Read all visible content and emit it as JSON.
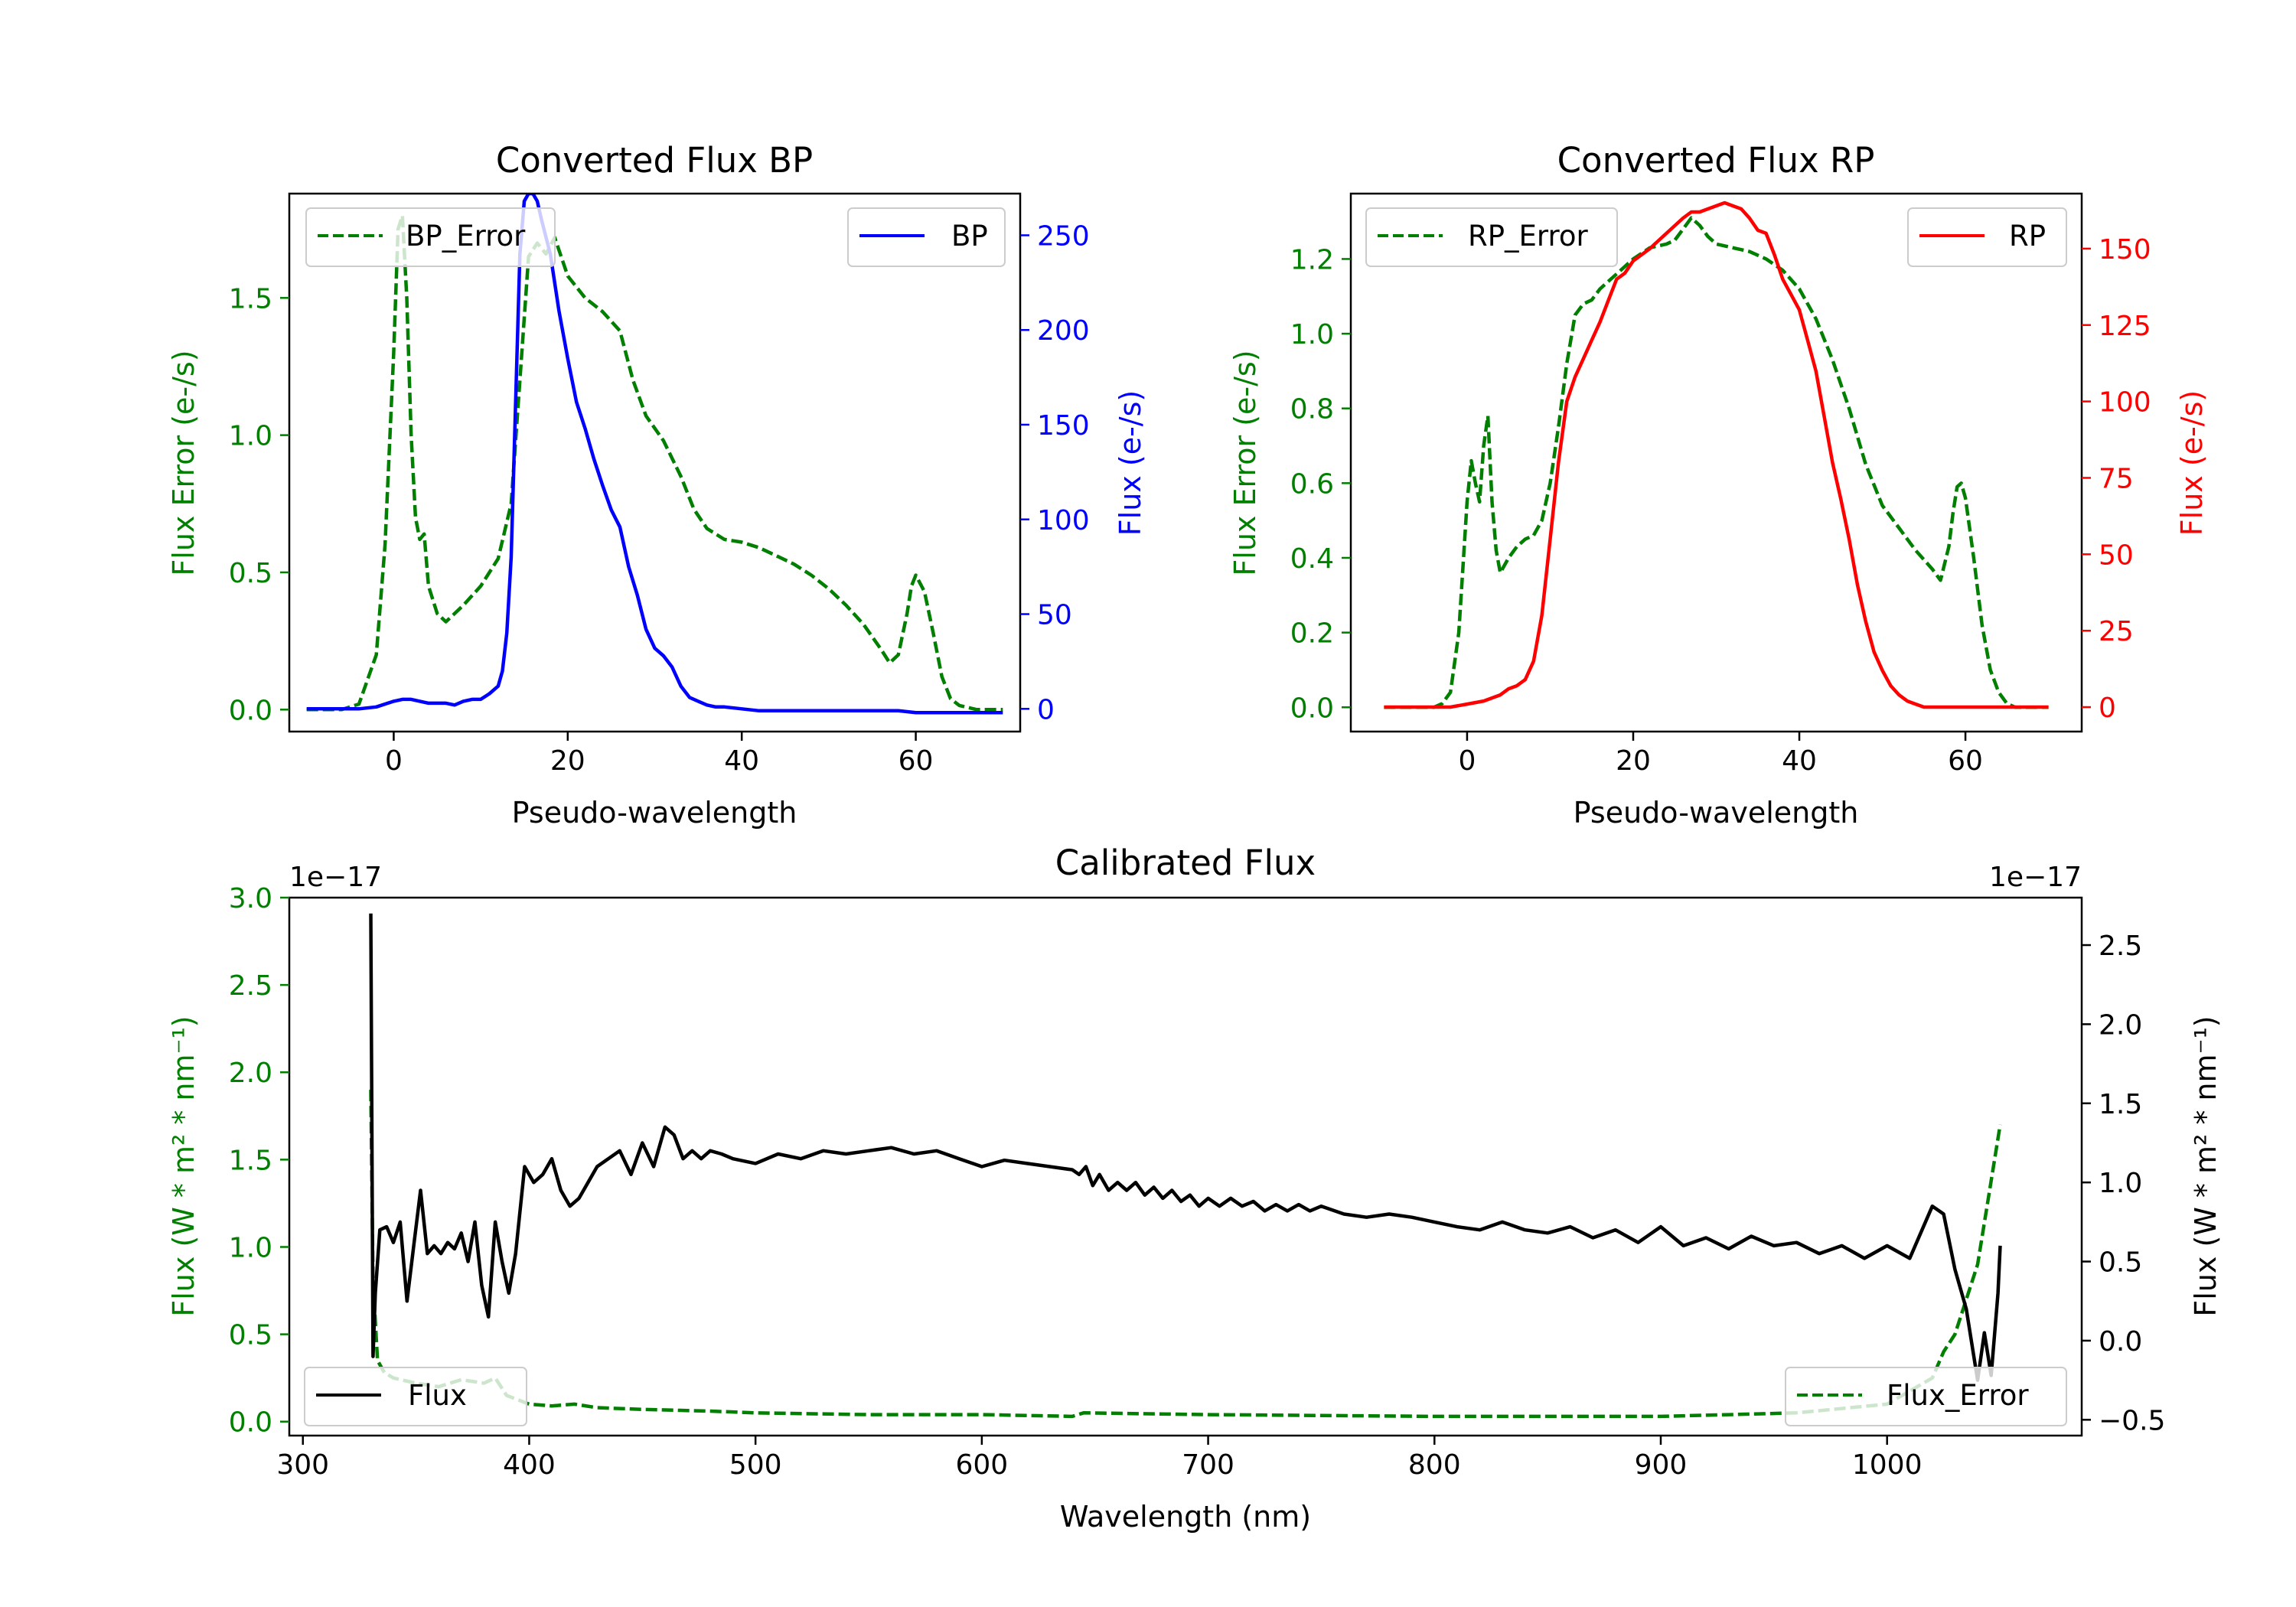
{
  "colors": {
    "bp_flux": "#0000ff",
    "rp_flux": "#ff0000",
    "error": "#007f00",
    "calib_flux": "#000000",
    "axis": "#000000"
  },
  "chart_data": [
    {
      "id": "bp",
      "type": "line",
      "title": "Converted Flux BP",
      "xlabel": "Pseudo-wavelength",
      "ylabel_left": "Flux Error (e-/s)",
      "ylabel_right": "Flux (e-/s)",
      "xlim": [
        -12,
        72
      ],
      "ylim_left": [
        -0.08,
        1.88
      ],
      "ylim_right": [
        -12,
        272
      ],
      "xticks": [
        0,
        20,
        40,
        60
      ],
      "yticks_left": [
        0.0,
        0.5,
        1.0,
        1.5
      ],
      "yticks_left_labels": [
        "0.0",
        "0.5",
        "1.0",
        "1.5"
      ],
      "yticks_right": [
        0,
        50,
        100,
        150,
        200,
        250
      ],
      "yticks_right_labels": [
        "0",
        "50",
        "100",
        "150",
        "200",
        "250"
      ],
      "legend_left": "top-left",
      "legend_right": "top-right",
      "series": [
        {
          "name": "BP_Error",
          "axis": "left",
          "style": "dashed",
          "color_key": "error",
          "x": [
            -10,
            -6,
            -4,
            -2,
            -1,
            0,
            0.5,
            1,
            1.5,
            2,
            2.5,
            3,
            3.5,
            4,
            5,
            6,
            8,
            10,
            12,
            13.5,
            14.5,
            15.5,
            16.5,
            17.5,
            18.5,
            20,
            22,
            24,
            26,
            27.5,
            29,
            31,
            33,
            34.5,
            36,
            38,
            40,
            42,
            44,
            46,
            48,
            50,
            52,
            54,
            56,
            57,
            58,
            59,
            59.5,
            60,
            61,
            62,
            63,
            64,
            65,
            67,
            70
          ],
          "y": [
            0,
            0,
            0.02,
            0.2,
            0.6,
            1.3,
            1.75,
            1.8,
            1.5,
            1.0,
            0.7,
            0.62,
            0.64,
            0.45,
            0.35,
            0.32,
            0.38,
            0.45,
            0.55,
            0.75,
            1.2,
            1.65,
            1.7,
            1.66,
            1.72,
            1.58,
            1.5,
            1.45,
            1.38,
            1.2,
            1.07,
            0.98,
            0.85,
            0.73,
            0.66,
            0.62,
            0.61,
            0.59,
            0.56,
            0.53,
            0.49,
            0.44,
            0.38,
            0.31,
            0.22,
            0.17,
            0.2,
            0.35,
            0.45,
            0.49,
            0.43,
            0.28,
            0.12,
            0.04,
            0.015,
            0,
            0
          ]
        },
        {
          "name": "BP",
          "axis": "right",
          "style": "solid",
          "color_key": "bp_flux",
          "x": [
            -10,
            -4,
            -2,
            0,
            1,
            2,
            3,
            4,
            5,
            6,
            7,
            8,
            9,
            10,
            11,
            12,
            12.5,
            13,
            13.5,
            14,
            14.5,
            15,
            15.5,
            16,
            16.5,
            17,
            18,
            19,
            20,
            21,
            22,
            23,
            24,
            25,
            26,
            27,
            28,
            29,
            30,
            31,
            32,
            33,
            34,
            35,
            36,
            37,
            38,
            40,
            42,
            44,
            46,
            48,
            50,
            52,
            54,
            56,
            58,
            60,
            62,
            64,
            66,
            68,
            70
          ],
          "y": [
            0,
            0,
            1,
            4,
            5,
            5,
            4,
            3,
            3,
            3,
            2,
            4,
            5,
            5,
            8,
            12,
            20,
            40,
            80,
            160,
            240,
            268,
            272,
            272,
            268,
            258,
            240,
            210,
            185,
            162,
            148,
            132,
            118,
            105,
            96,
            75,
            60,
            42,
            32,
            28,
            22,
            12,
            6,
            4,
            2,
            1,
            1,
            0,
            -1,
            -1,
            -1,
            -1,
            -1,
            -1,
            -1,
            -1,
            -1,
            -2,
            -2,
            -2,
            -2,
            -2,
            -2
          ]
        }
      ],
      "legend": [
        "BP_Error",
        "BP"
      ]
    },
    {
      "id": "rp",
      "type": "line",
      "title": "Converted Flux RP",
      "xlabel": "Pseudo-wavelength",
      "ylabel_left": "Flux Error (e-/s)",
      "ylabel_right": "Flux (e-/s)",
      "xlim": [
        -14,
        74
      ],
      "ylim_left": [
        -0.065,
        1.375
      ],
      "ylim_right": [
        -8,
        168
      ],
      "xticks": [
        0,
        20,
        40,
        60
      ],
      "yticks_left": [
        0.0,
        0.2,
        0.4,
        0.6,
        0.8,
        1.0,
        1.2
      ],
      "yticks_left_labels": [
        "0.0",
        "0.2",
        "0.4",
        "0.6",
        "0.8",
        "1.0",
        "1.2"
      ],
      "yticks_right": [
        0,
        25,
        50,
        75,
        100,
        125,
        150
      ],
      "yticks_right_labels": [
        "0",
        "25",
        "50",
        "75",
        "100",
        "125",
        "150"
      ],
      "legend_left": "top-left",
      "legend_right": "top-right",
      "series": [
        {
          "name": "RP_Error",
          "axis": "left",
          "style": "dashed",
          "color_key": "error",
          "x": [
            -10,
            -6,
            -4,
            -3,
            -2,
            -1,
            0,
            0.5,
            1,
            1.5,
            2,
            2.5,
            3,
            3.5,
            4,
            5,
            6,
            7,
            8,
            9,
            10,
            11,
            12,
            13,
            14,
            15,
            16,
            18,
            20,
            22,
            24,
            25,
            26,
            27,
            28,
            29,
            30,
            32,
            34,
            36,
            38,
            40,
            42,
            44,
            46,
            48,
            50,
            52,
            54,
            56,
            57,
            58,
            58.5,
            59,
            59.5,
            60,
            61,
            62,
            63,
            64,
            65,
            66,
            70
          ],
          "y": [
            0,
            0,
            0,
            0.01,
            0.04,
            0.2,
            0.55,
            0.66,
            0.6,
            0.55,
            0.7,
            0.78,
            0.55,
            0.42,
            0.36,
            0.4,
            0.43,
            0.45,
            0.46,
            0.5,
            0.6,
            0.75,
            0.92,
            1.05,
            1.08,
            1.09,
            1.12,
            1.16,
            1.2,
            1.23,
            1.24,
            1.25,
            1.28,
            1.31,
            1.29,
            1.26,
            1.24,
            1.23,
            1.22,
            1.2,
            1.17,
            1.12,
            1.04,
            0.93,
            0.8,
            0.65,
            0.54,
            0.48,
            0.42,
            0.37,
            0.34,
            0.43,
            0.52,
            0.59,
            0.6,
            0.56,
            0.4,
            0.22,
            0.1,
            0.04,
            0.01,
            0,
            0
          ]
        },
        {
          "name": "RP",
          "axis": "right",
          "style": "solid",
          "color_key": "rp_flux",
          "x": [
            -10,
            -4,
            -2,
            0,
            2,
            4,
            5,
            6,
            7,
            8,
            9,
            10,
            11,
            12,
            13,
            14,
            15,
            16,
            17,
            18,
            19,
            20,
            22,
            24,
            26,
            27,
            28,
            29,
            30,
            31,
            32,
            33,
            34,
            35,
            36,
            37,
            38,
            39,
            40,
            41,
            42,
            43,
            44,
            45,
            46,
            47,
            48,
            49,
            50,
            51,
            52,
            53,
            54,
            55,
            56,
            58,
            60,
            62,
            64,
            66,
            70
          ],
          "y": [
            0,
            0,
            0,
            1,
            2,
            4,
            6,
            7,
            9,
            15,
            30,
            55,
            80,
            100,
            108,
            114,
            120,
            126,
            133,
            140,
            142,
            146,
            150,
            155,
            160,
            162,
            162,
            163,
            164,
            165,
            164,
            163,
            160,
            156,
            155,
            148,
            140,
            135,
            130,
            120,
            110,
            95,
            80,
            68,
            55,
            40,
            28,
            18,
            12,
            7,
            4,
            2,
            1,
            0,
            0,
            0,
            0,
            0,
            0,
            0,
            0
          ]
        }
      ],
      "legend": [
        "RP_Error",
        "RP"
      ]
    },
    {
      "id": "calibrated",
      "type": "line",
      "title": "Calibrated Flux",
      "xlabel": "Wavelength (nm)",
      "ylabel_left": "Flux (W * m² * nm⁻¹)",
      "ylabel_right": "Flux (W * m² * nm⁻¹)",
      "offset_left": "1e−17",
      "offset_right": "1e−17",
      "xlim": [
        294,
        1086
      ],
      "ylim_left": [
        -0.08,
        3.0
      ],
      "ylim_right": [
        -0.6,
        2.8
      ],
      "xticks": [
        300,
        400,
        500,
        600,
        700,
        800,
        900,
        1000
      ],
      "yticks_left": [
        0.0,
        0.5,
        1.0,
        1.5,
        2.0,
        2.5,
        3.0
      ],
      "yticks_left_labels": [
        "0.0",
        "0.5",
        "1.0",
        "1.5",
        "2.0",
        "2.5",
        "3.0"
      ],
      "yticks_right": [
        -0.5,
        0.0,
        0.5,
        1.0,
        1.5,
        2.0,
        2.5
      ],
      "yticks_right_labels": [
        "−0.5",
        "0.0",
        "0.5",
        "1.0",
        "1.5",
        "2.0",
        "2.5"
      ],
      "legend_left": "lower-left",
      "legend_right": "lower-right",
      "series": [
        {
          "name": "Flux_Error",
          "axis": "left",
          "style": "dashed",
          "color_key": "error",
          "x": [
            330,
            331,
            333,
            336,
            340,
            350,
            360,
            370,
            380,
            385,
            390,
            400,
            410,
            420,
            430,
            450,
            480,
            500,
            550,
            600,
            640,
            645,
            700,
            800,
            900,
            960,
            1000,
            1020,
            1025,
            1030,
            1035,
            1040,
            1045,
            1050
          ],
          "y": [
            1.9,
            0.8,
            0.35,
            0.28,
            0.25,
            0.22,
            0.2,
            0.24,
            0.22,
            0.25,
            0.15,
            0.1,
            0.09,
            0.1,
            0.08,
            0.07,
            0.06,
            0.05,
            0.04,
            0.04,
            0.03,
            0.05,
            0.04,
            0.03,
            0.03,
            0.05,
            0.1,
            0.25,
            0.4,
            0.5,
            0.7,
            0.9,
            1.3,
            1.7
          ]
        },
        {
          "name": "Flux",
          "axis": "right",
          "style": "solid",
          "color_key": "calib_flux",
          "x": [
            330,
            331,
            332,
            334,
            337,
            340,
            343,
            346,
            349,
            352,
            355,
            358,
            361,
            364,
            367,
            370,
            373,
            376,
            379,
            382,
            385,
            388,
            391,
            394,
            398,
            402,
            406,
            410,
            414,
            418,
            422,
            430,
            440,
            445,
            450,
            455,
            460,
            464,
            468,
            472,
            476,
            480,
            485,
            490,
            500,
            510,
            520,
            530,
            540,
            550,
            560,
            570,
            580,
            590,
            600,
            610,
            620,
            630,
            640,
            643,
            646,
            649,
            652,
            656,
            660,
            664,
            668,
            672,
            676,
            680,
            684,
            688,
            692,
            696,
            700,
            705,
            710,
            715,
            720,
            725,
            730,
            735,
            740,
            745,
            750,
            760,
            770,
            780,
            790,
            800,
            810,
            820,
            830,
            840,
            850,
            860,
            870,
            880,
            890,
            900,
            910,
            920,
            930,
            940,
            950,
            960,
            970,
            980,
            990,
            1000,
            1010,
            1020,
            1025,
            1030,
            1035,
            1040,
            1043,
            1046,
            1049,
            1050
          ],
          "y": [
            2.7,
            -0.1,
            0.3,
            0.7,
            0.72,
            0.62,
            0.75,
            0.25,
            0.6,
            0.95,
            0.55,
            0.6,
            0.55,
            0.62,
            0.58,
            0.68,
            0.5,
            0.75,
            0.35,
            0.15,
            0.75,
            0.5,
            0.3,
            0.55,
            1.1,
            1.0,
            1.05,
            1.15,
            0.95,
            0.85,
            0.9,
            1.1,
            1.2,
            1.05,
            1.25,
            1.1,
            1.35,
            1.3,
            1.15,
            1.2,
            1.15,
            1.2,
            1.18,
            1.15,
            1.12,
            1.18,
            1.15,
            1.2,
            1.18,
            1.2,
            1.22,
            1.18,
            1.2,
            1.15,
            1.1,
            1.14,
            1.12,
            1.1,
            1.08,
            1.05,
            1.1,
            0.98,
            1.05,
            0.95,
            1.0,
            0.95,
            1.0,
            0.92,
            0.97,
            0.9,
            0.95,
            0.88,
            0.92,
            0.85,
            0.9,
            0.85,
            0.9,
            0.85,
            0.88,
            0.82,
            0.86,
            0.82,
            0.86,
            0.82,
            0.85,
            0.8,
            0.78,
            0.8,
            0.78,
            0.75,
            0.72,
            0.7,
            0.75,
            0.7,
            0.68,
            0.72,
            0.65,
            0.7,
            0.62,
            0.72,
            0.6,
            0.65,
            0.58,
            0.66,
            0.6,
            0.62,
            0.55,
            0.6,
            0.52,
            0.6,
            0.52,
            0.85,
            0.8,
            0.45,
            0.2,
            -0.25,
            0.05,
            -0.22,
            0.3,
            0.6
          ]
        }
      ],
      "legend": [
        "Flux",
        "Flux_Error"
      ]
    }
  ]
}
